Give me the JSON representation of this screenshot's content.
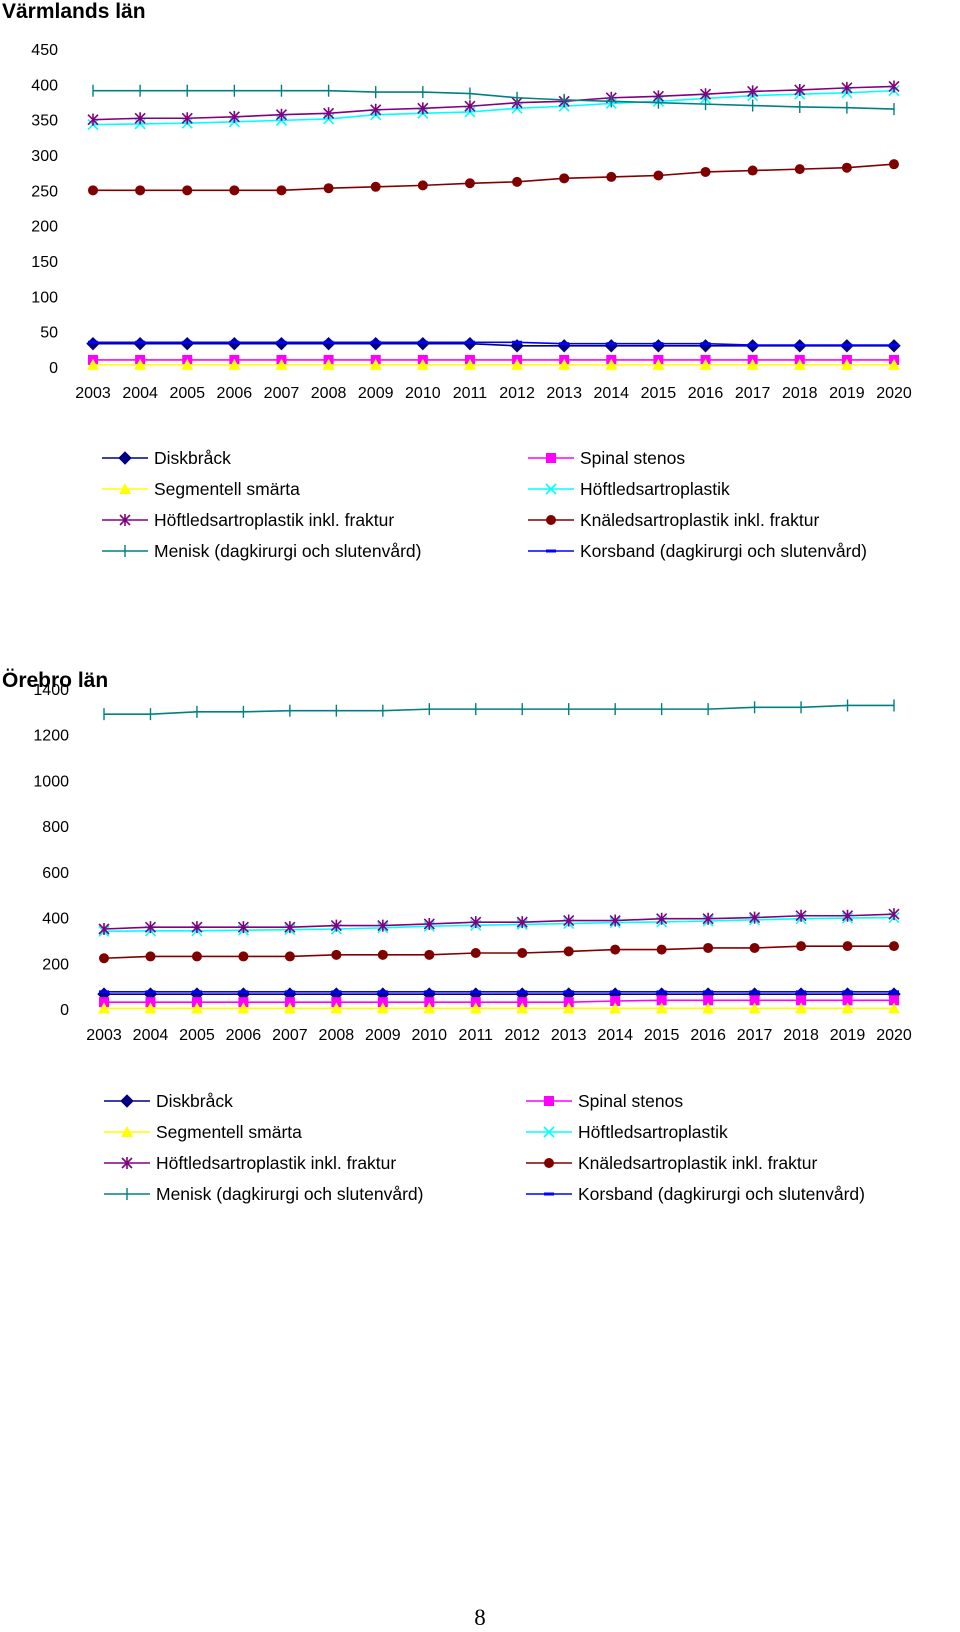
{
  "page": {
    "number": "8"
  },
  "series_styles": [
    {
      "key": "diskbrack",
      "color": "#000080",
      "marker": "diamond"
    },
    {
      "key": "spinal",
      "color": "#ff00ff",
      "marker": "square"
    },
    {
      "key": "segmentell",
      "color": "#ffff00",
      "marker": "triangle"
    },
    {
      "key": "hoftled",
      "color": "#00ffff",
      "marker": "x"
    },
    {
      "key": "hoftled_fraktur",
      "color": "#800080",
      "marker": "star"
    },
    {
      "key": "knaled",
      "color": "#800000",
      "marker": "circle"
    },
    {
      "key": "menisk",
      "color": "#008080",
      "marker": "plus"
    },
    {
      "key": "korsband",
      "color": "#0000ff",
      "marker": "dash"
    }
  ],
  "legend": {
    "left": [
      "Diskbråck",
      "Segmentell smärta",
      "Höftledsartroplastik inkl. fraktur",
      "Menisk (dagkirurgi och slutenvård)"
    ],
    "right": [
      "Spinal stenos",
      "Höftledsartroplastik",
      "Knäledsartroplastik inkl. fraktur",
      "Korsband (dagkirurgi och slutenvård)"
    ]
  },
  "chart_data": [
    {
      "type": "line",
      "title": "Värmlands län",
      "categories": [
        "2003",
        "2004",
        "2005",
        "2006",
        "2007",
        "2008",
        "2009",
        "2010",
        "2011",
        "2012",
        "2013",
        "2014",
        "2015",
        "2016",
        "2017",
        "2018",
        "2019",
        "2020"
      ],
      "ylim": [
        0,
        450
      ],
      "yticks": [
        0,
        50,
        100,
        150,
        200,
        250,
        300,
        350,
        400,
        450
      ],
      "xlabel": "",
      "ylabel": "",
      "grid": false,
      "series": [
        {
          "name": "Diskbråck",
          "values": [
            33,
            33,
            33,
            33,
            33,
            33,
            33,
            33,
            33,
            30,
            30,
            30,
            30,
            30,
            30,
            30,
            30,
            30
          ]
        },
        {
          "name": "Spinal stenos",
          "values": [
            10,
            10,
            10,
            10,
            10,
            10,
            10,
            10,
            10,
            10,
            10,
            10,
            10,
            10,
            10,
            10,
            10,
            10
          ]
        },
        {
          "name": "Segmentell smärta",
          "values": [
            3,
            3,
            3,
            3,
            3,
            3,
            3,
            3,
            3,
            3,
            3,
            3,
            3,
            3,
            3,
            3,
            3,
            3
          ]
        },
        {
          "name": "Höftledsartroplastik",
          "values": [
            343,
            344,
            345,
            347,
            349,
            351,
            357,
            359,
            361,
            366,
            369,
            373,
            376,
            380,
            384,
            386,
            388,
            391
          ]
        },
        {
          "name": "Höftledsartroplastik inkl. fraktur",
          "values": [
            350,
            352,
            352,
            354,
            357,
            359,
            364,
            366,
            369,
            374,
            376,
            381,
            383,
            386,
            390,
            392,
            395,
            397
          ]
        },
        {
          "name": "Knäledsartroplastik inkl. fraktur",
          "values": [
            250,
            250,
            250,
            250,
            250,
            253,
            255,
            257,
            260,
            262,
            267,
            269,
            271,
            276,
            278,
            280,
            282,
            287
          ]
        },
        {
          "name": "Menisk (dagkirurgi och slutenvård)",
          "values": [
            391,
            391,
            391,
            391,
            391,
            391,
            389,
            389,
            387,
            381,
            378,
            376,
            374,
            372,
            370,
            368,
            367,
            365
          ]
        },
        {
          "name": "Korsband (dagkirurgi och slutenvård)",
          "values": [
            35,
            35,
            35,
            35,
            35,
            35,
            35,
            35,
            35,
            35,
            33,
            33,
            33,
            33,
            31,
            31,
            31,
            31
          ]
        }
      ]
    },
    {
      "type": "line",
      "title": "Örebro län",
      "categories": [
        "2003",
        "2004",
        "2005",
        "2006",
        "2007",
        "2008",
        "2009",
        "2010",
        "2011",
        "2012",
        "2013",
        "2014",
        "2015",
        "2016",
        "2017",
        "2018",
        "2019",
        "2020"
      ],
      "ylim": [
        0,
        1400
      ],
      "yticks": [
        0,
        200,
        400,
        600,
        800,
        1000,
        1200,
        1400
      ],
      "xlabel": "",
      "ylabel": "",
      "grid": false,
      "series": [
        {
          "name": "Diskbråck",
          "values": [
            65,
            65,
            65,
            65,
            65,
            65,
            65,
            65,
            65,
            65,
            65,
            65,
            65,
            65,
            65,
            65,
            65,
            65
          ]
        },
        {
          "name": "Spinal stenos",
          "values": [
            30,
            30,
            30,
            30,
            30,
            30,
            30,
            30,
            30,
            30,
            30,
            35,
            38,
            38,
            38,
            38,
            38,
            38
          ]
        },
        {
          "name": "Segmentell smärta",
          "values": [
            3,
            3,
            3,
            3,
            3,
            3,
            3,
            3,
            3,
            3,
            3,
            3,
            3,
            3,
            3,
            3,
            3,
            3
          ]
        },
        {
          "name": "Höftledsartroplastik",
          "values": [
            340,
            342,
            342,
            345,
            347,
            350,
            355,
            362,
            366,
            370,
            374,
            378,
            381,
            385,
            390,
            395,
            398,
            400
          ]
        },
        {
          "name": "Höftledsartroplastik inkl. fraktur",
          "values": [
            350,
            358,
            358,
            358,
            358,
            365,
            365,
            372,
            380,
            380,
            387,
            387,
            395,
            395,
            400,
            408,
            408,
            415
          ]
        },
        {
          "name": "Knäledsartroplastik inkl. fraktur",
          "values": [
            222,
            230,
            230,
            230,
            230,
            237,
            237,
            237,
            245,
            245,
            252,
            260,
            260,
            267,
            267,
            275,
            275,
            275
          ]
        },
        {
          "name": "Menisk (dagkirurgi och slutenvård)",
          "values": [
            1290,
            1290,
            1300,
            1300,
            1305,
            1305,
            1305,
            1312,
            1312,
            1312,
            1312,
            1312,
            1312,
            1312,
            1320,
            1320,
            1328,
            1328
          ]
        },
        {
          "name": "Korsband (dagkirurgi och slutenvård)",
          "values": [
            75,
            75,
            75,
            75,
            75,
            75,
            75,
            75,
            75,
            75,
            75,
            75,
            75,
            75,
            75,
            75,
            75,
            75
          ]
        }
      ]
    }
  ]
}
